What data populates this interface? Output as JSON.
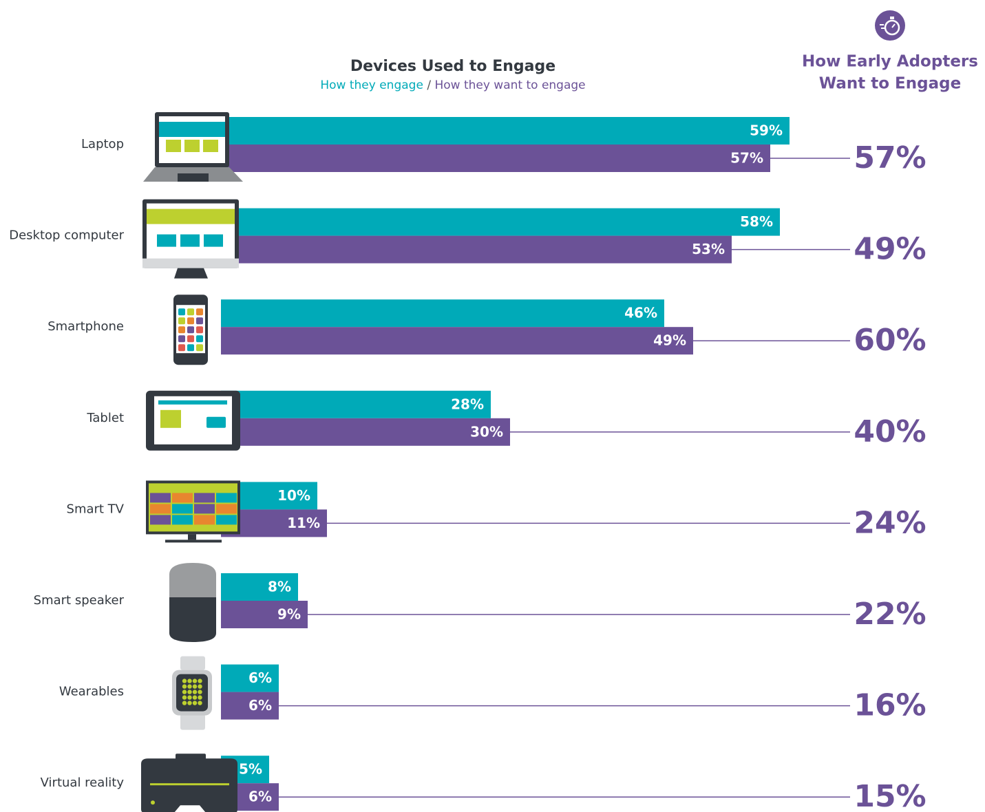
{
  "chart_data": {
    "type": "bar",
    "title": "Devices Used to Engage",
    "subtitle_separator": "/",
    "categories": [
      "Laptop",
      "Desktop computer",
      "Smartphone",
      "Tablet",
      "Smart TV",
      "Smart speaker",
      "Wearables",
      "Virtual reality"
    ],
    "series": [
      {
        "name": "How they engage",
        "color": "#00aab8",
        "values": [
          59,
          58,
          46,
          28,
          10,
          8,
          6,
          5
        ],
        "value_labels": [
          "59%",
          "58%",
          "46%",
          "28%",
          "10%",
          "8%",
          "6%",
          "5%"
        ]
      },
      {
        "name": "How they want to engage",
        "color": "#6b5297",
        "values": [
          57,
          53,
          49,
          30,
          11,
          9,
          6,
          6
        ],
        "value_labels": [
          "57%",
          "53%",
          "49%",
          "30%",
          "11%",
          "9%",
          "6%",
          "6%"
        ]
      }
    ],
    "early_adopters": {
      "title": [
        "How Early Adopters",
        "Want to Engage"
      ],
      "color": "#6b5297",
      "values": [
        57,
        49,
        60,
        40,
        24,
        22,
        16,
        15
      ],
      "value_labels": [
        "57%",
        "49%",
        "60%",
        "40%",
        "24%",
        "22%",
        "16%",
        "15%"
      ]
    }
  }
}
